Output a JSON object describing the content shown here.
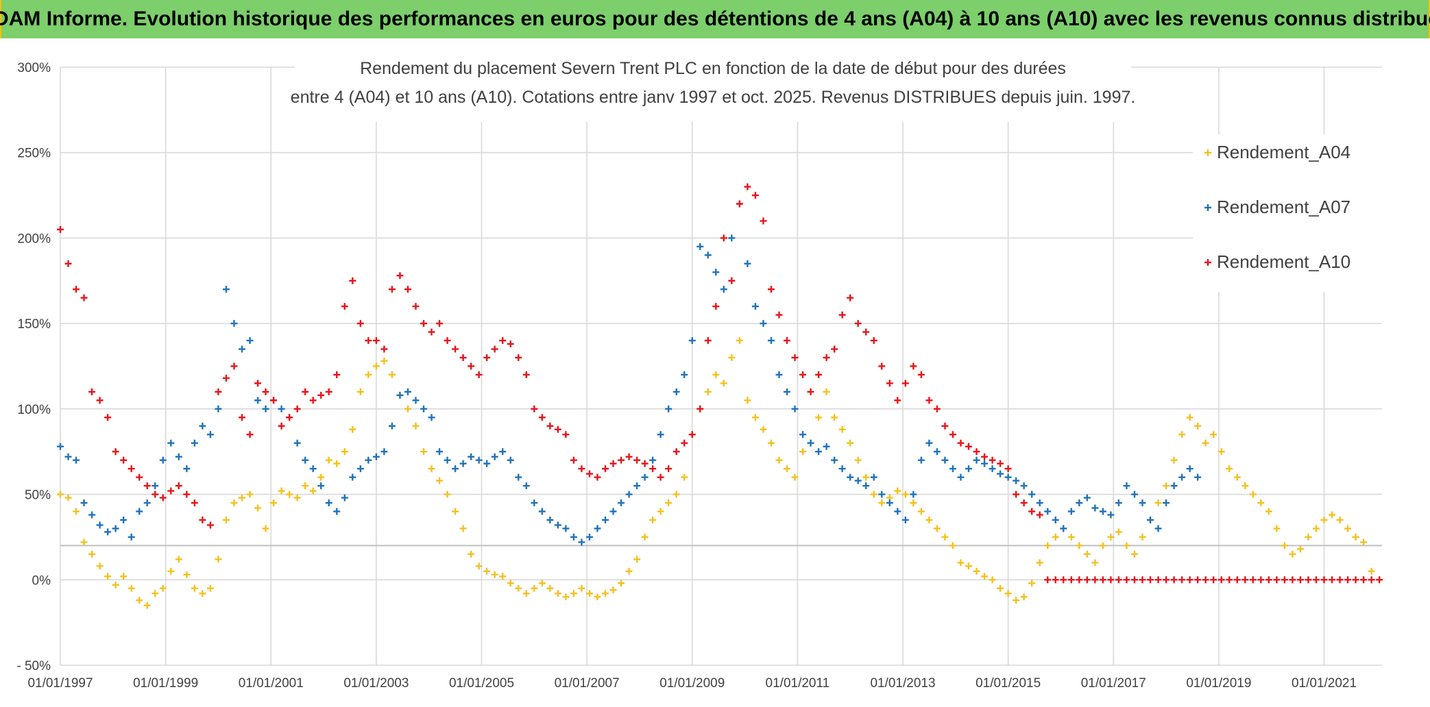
{
  "header": {
    "title": "ADAM Informe. Evolution historique des performances en euros pour des détentions de 4 ans (A04) à 10 ans (A10) avec les revenus connus distribués"
  },
  "colors": {
    "header_bg": "#7ccf6b",
    "frame_border": "#f2c200",
    "A04": "#f5c01e",
    "A07": "#1f72bb",
    "A10": "#e8141a",
    "grid": "#d9d9d9"
  },
  "chart_data": {
    "type": "scatter",
    "title_lines": [
      "Rendement du placement Severn Trent PLC en fonction de la date de début pour des durées",
      "entre 4 (A04) et 10 ans (A10). Cotations entre janv 1997 et oct. 2025. Revenus DISTRIBUES depuis juin. 1997."
    ],
    "xlim": [
      1997.0,
      2022.1
    ],
    "ylim": [
      -50,
      300
    ],
    "x_ticks": [
      1997,
      1999,
      2001,
      2003,
      2005,
      2007,
      2009,
      2011,
      2013,
      2015,
      2017,
      2019,
      2021
    ],
    "x_tick_labels": [
      "01/01/1997",
      "01/01/1999",
      "01/01/2001",
      "01/01/2003",
      "01/01/2005",
      "01/01/2007",
      "01/01/2009",
      "01/01/2011",
      "01/01/2013",
      "01/01/2015",
      "01/01/2017",
      "01/01/2019",
      "01/01/2021"
    ],
    "y_ticks": [
      -50,
      0,
      50,
      100,
      150,
      200,
      250,
      300
    ],
    "y_tick_labels": [
      "- 50%",
      "0%",
      "50%",
      "100%",
      "150%",
      "200%",
      "250%",
      "300%"
    ],
    "legend": {
      "placement": "right",
      "entries": [
        "Rendement_A04",
        "Rendement_A07",
        "Rendement_A10"
      ]
    },
    "marker": "+",
    "series": [
      {
        "name": "Rendement_A04",
        "color": "#f5c01e",
        "x": [
          1997.0,
          1997.15,
          1997.3,
          1997.45,
          1997.6,
          1997.75,
          1997.9,
          1998.05,
          1998.2,
          1998.35,
          1998.5,
          1998.65,
          1998.8,
          1998.95,
          1999.1,
          1999.25,
          1999.4,
          1999.55,
          1999.7,
          1999.85,
          2000.0,
          2000.15,
          2000.3,
          2000.45,
          2000.6,
          2000.75,
          2000.9,
          2001.05,
          2001.2,
          2001.35,
          2001.5,
          2001.65,
          2001.8,
          2001.95,
          2002.1,
          2002.25,
          2002.4,
          2002.55,
          2002.7,
          2002.85,
          2003.0,
          2003.15,
          2003.3,
          2003.45,
          2003.6,
          2003.75,
          2003.9,
          2004.05,
          2004.2,
          2004.35,
          2004.5,
          2004.65,
          2004.8,
          2004.95,
          2005.1,
          2005.25,
          2005.4,
          2005.55,
          2005.7,
          2005.85,
          2006.0,
          2006.15,
          2006.3,
          2006.45,
          2006.6,
          2006.75,
          2006.9,
          2007.05,
          2007.2,
          2007.35,
          2007.5,
          2007.65,
          2007.8,
          2007.95,
          2008.1,
          2008.25,
          2008.4,
          2008.55,
          2008.7,
          2008.85,
          2009.0,
          2009.15,
          2009.3,
          2009.45,
          2009.6,
          2009.75,
          2009.9,
          2010.05,
          2010.2,
          2010.35,
          2010.5,
          2010.65,
          2010.8,
          2010.95,
          2011.1,
          2011.25,
          2011.4,
          2011.55,
          2011.7,
          2011.85,
          2012.0,
          2012.15,
          2012.3,
          2012.45,
          2012.6,
          2012.75,
          2012.9,
          2013.05,
          2013.2,
          2013.35,
          2013.5,
          2013.65,
          2013.8,
          2013.95,
          2014.1,
          2014.25,
          2014.4,
          2014.55,
          2014.7,
          2014.85,
          2015.0,
          2015.15,
          2015.3,
          2015.45,
          2015.6,
          2015.75,
          2015.9,
          2016.05,
          2016.2,
          2016.35,
          2016.5,
          2016.65,
          2016.8,
          2016.95,
          2017.1,
          2017.25,
          2017.4,
          2017.55,
          2017.7,
          2017.85,
          2018.0,
          2018.15,
          2018.3,
          2018.45,
          2018.6,
          2018.75,
          2018.9,
          2019.05,
          2019.2,
          2019.35,
          2019.5,
          2019.65,
          2019.8,
          2019.95,
          2020.1,
          2020.25,
          2020.4,
          2020.55,
          2020.7,
          2020.85,
          2021.0,
          2021.15,
          2021.3,
          2021.45,
          2021.6,
          2021.75,
          2021.9,
          2022.05
        ],
        "y": [
          50,
          48,
          40,
          22,
          15,
          8,
          2,
          -3,
          2,
          -5,
          -12,
          -15,
          -8,
          -5,
          5,
          12,
          3,
          -5,
          -8,
          -5,
          12,
          35,
          45,
          48,
          50,
          42,
          30,
          45,
          52,
          50,
          48,
          55,
          52,
          60,
          70,
          68,
          75,
          88,
          110,
          120,
          125,
          128,
          120,
          108,
          100,
          90,
          75,
          65,
          58,
          50,
          40,
          30,
          15,
          8,
          5,
          3,
          2,
          -2,
          -5,
          -8,
          -5,
          -2,
          -5,
          -8,
          -10,
          -8,
          -5,
          -8,
          -10,
          -8,
          -6,
          -2,
          5,
          12,
          25,
          35,
          40,
          45,
          50,
          60,
          85,
          100,
          110,
          120,
          115,
          130,
          140,
          105,
          95,
          88,
          80,
          70,
          65,
          60,
          75,
          80,
          95,
          110,
          95,
          88,
          80,
          70,
          60,
          50,
          45,
          48,
          52,
          50,
          45,
          40,
          35,
          30,
          25,
          20,
          10,
          8,
          5,
          2,
          0,
          -5,
          -8,
          -12,
          -10,
          -2,
          10,
          20,
          25,
          30,
          25,
          20,
          15,
          10,
          20,
          25,
          28,
          20,
          15,
          25,
          35,
          45,
          55,
          70,
          85,
          95,
          90,
          80,
          85,
          75,
          65,
          60,
          55,
          50,
          45,
          40,
          30,
          20,
          15,
          18,
          25,
          30,
          35,
          38,
          35,
          30,
          25,
          22,
          5,
          0
        ]
      },
      {
        "name": "Rendement_A07",
        "color": "#1f72bb",
        "x": [
          1997.0,
          1997.15,
          1997.3,
          1997.45,
          1997.6,
          1997.75,
          1997.9,
          1998.05,
          1998.2,
          1998.35,
          1998.5,
          1998.65,
          1998.8,
          1998.95,
          1999.1,
          1999.25,
          1999.4,
          1999.55,
          1999.7,
          1999.85,
          2000.0,
          2000.15,
          2000.3,
          2000.45,
          2000.6,
          2000.75,
          2000.9,
          2001.05,
          2001.2,
          2001.35,
          2001.5,
          2001.65,
          2001.8,
          2001.95,
          2002.1,
          2002.25,
          2002.4,
          2002.55,
          2002.7,
          2002.85,
          2003.0,
          2003.15,
          2003.3,
          2003.45,
          2003.6,
          2003.75,
          2003.9,
          2004.05,
          2004.2,
          2004.35,
          2004.5,
          2004.65,
          2004.8,
          2004.95,
          2005.1,
          2005.25,
          2005.4,
          2005.55,
          2005.7,
          2005.85,
          2006.0,
          2006.15,
          2006.3,
          2006.45,
          2006.6,
          2006.75,
          2006.9,
          2007.05,
          2007.2,
          2007.35,
          2007.5,
          2007.65,
          2007.8,
          2007.95,
          2008.1,
          2008.25,
          2008.4,
          2008.55,
          2008.7,
          2008.85,
          2009.0,
          2009.15,
          2009.3,
          2009.45,
          2009.6,
          2009.75,
          2009.9,
          2010.05,
          2010.2,
          2010.35,
          2010.5,
          2010.65,
          2010.8,
          2010.95,
          2011.1,
          2011.25,
          2011.4,
          2011.55,
          2011.7,
          2011.85,
          2012.0,
          2012.15,
          2012.3,
          2012.45,
          2012.6,
          2012.75,
          2012.9,
          2013.05,
          2013.2,
          2013.35,
          2013.5,
          2013.65,
          2013.8,
          2013.95,
          2014.1,
          2014.25,
          2014.4,
          2014.55,
          2014.7,
          2014.85,
          2015.0,
          2015.15,
          2015.3,
          2015.45,
          2015.6,
          2015.75,
          2015.9,
          2016.05,
          2016.2,
          2016.35,
          2016.5,
          2016.65,
          2016.8,
          2016.95,
          2017.1,
          2017.25,
          2017.4,
          2017.55,
          2017.7,
          2017.85,
          2018.0,
          2018.15,
          2018.3,
          2018.45,
          2018.6
        ],
        "y": [
          78,
          72,
          70,
          45,
          38,
          32,
          28,
          30,
          35,
          25,
          40,
          45,
          55,
          70,
          80,
          72,
          65,
          80,
          90,
          85,
          100,
          170,
          150,
          135,
          140,
          105,
          100,
          105,
          100,
          95,
          80,
          70,
          65,
          55,
          45,
          40,
          48,
          60,
          65,
          70,
          72,
          75,
          90,
          108,
          110,
          105,
          100,
          95,
          75,
          70,
          65,
          68,
          72,
          70,
          68,
          72,
          75,
          70,
          60,
          55,
          45,
          40,
          35,
          32,
          30,
          25,
          22,
          25,
          30,
          35,
          40,
          45,
          50,
          55,
          60,
          70,
          85,
          100,
          110,
          120,
          140,
          195,
          190,
          180,
          170,
          200,
          220,
          185,
          160,
          150,
          140,
          120,
          110,
          100,
          85,
          80,
          75,
          78,
          70,
          65,
          60,
          58,
          55,
          60,
          50,
          45,
          40,
          35,
          50,
          70,
          80,
          75,
          70,
          65,
          60,
          65,
          70,
          68,
          65,
          62,
          60,
          58,
          55,
          50,
          45,
          40,
          35,
          30,
          40,
          45,
          48,
          42,
          40,
          38,
          45,
          55,
          50,
          45,
          35,
          30,
          45,
          55,
          60,
          65,
          60
        ]
      },
      {
        "name": "Rendement_A10",
        "color": "#e8141a",
        "x": [
          1997.0,
          1997.15,
          1997.3,
          1997.45,
          1997.6,
          1997.75,
          1997.9,
          1998.05,
          1998.2,
          1998.35,
          1998.5,
          1998.65,
          1998.8,
          1998.95,
          1999.1,
          1999.25,
          1999.4,
          1999.55,
          1999.7,
          1999.85,
          2000.0,
          2000.15,
          2000.3,
          2000.45,
          2000.6,
          2000.75,
          2000.9,
          2001.05,
          2001.2,
          2001.35,
          2001.5,
          2001.65,
          2001.8,
          2001.95,
          2002.1,
          2002.25,
          2002.4,
          2002.55,
          2002.7,
          2002.85,
          2003.0,
          2003.15,
          2003.3,
          2003.45,
          2003.6,
          2003.75,
          2003.9,
          2004.05,
          2004.2,
          2004.35,
          2004.5,
          2004.65,
          2004.8,
          2004.95,
          2005.1,
          2005.25,
          2005.4,
          2005.55,
          2005.7,
          2005.85,
          2006.0,
          2006.15,
          2006.3,
          2006.45,
          2006.6,
          2006.75,
          2006.9,
          2007.05,
          2007.2,
          2007.35,
          2007.5,
          2007.65,
          2007.8,
          2007.95,
          2008.1,
          2008.25,
          2008.4,
          2008.55,
          2008.7,
          2008.85,
          2009.0,
          2009.15,
          2009.3,
          2009.45,
          2009.6,
          2009.75,
          2009.9,
          2010.05,
          2010.2,
          2010.35,
          2010.5,
          2010.65,
          2010.8,
          2010.95,
          2011.1,
          2011.25,
          2011.4,
          2011.55,
          2011.7,
          2011.85,
          2012.0,
          2012.15,
          2012.3,
          2012.45,
          2012.6,
          2012.75,
          2012.9,
          2013.05,
          2013.2,
          2013.35,
          2013.5,
          2013.65,
          2013.8,
          2013.95,
          2014.1,
          2014.25,
          2014.4,
          2014.55,
          2014.7,
          2014.85,
          2015.0,
          2015.15,
          2015.3,
          2015.45,
          2015.6,
          2015.75,
          2015.9,
          2016.05,
          2016.2,
          2016.35,
          2016.5,
          2016.65,
          2016.8,
          2016.95,
          2017.1,
          2017.25,
          2017.4,
          2017.55,
          2017.7,
          2017.85,
          2018.0,
          2018.15,
          2018.3,
          2018.45,
          2018.6,
          2018.75,
          2018.9,
          2019.05,
          2019.2,
          2019.35,
          2019.5,
          2019.65,
          2019.8,
          2019.95,
          2020.1,
          2020.25,
          2020.4,
          2020.55,
          2020.7,
          2020.85,
          2021.0,
          2021.15,
          2021.3,
          2021.45,
          2021.6,
          2021.75,
          2021.9,
          2022.05
        ],
        "y": [
          205,
          185,
          170,
          165,
          110,
          105,
          95,
          75,
          70,
          65,
          60,
          55,
          50,
          48,
          52,
          55,
          50,
          45,
          35,
          32,
          110,
          118,
          125,
          95,
          85,
          115,
          110,
          105,
          90,
          95,
          100,
          110,
          105,
          108,
          110,
          120,
          160,
          175,
          150,
          140,
          140,
          135,
          170,
          178,
          170,
          160,
          150,
          145,
          150,
          140,
          135,
          130,
          125,
          120,
          130,
          135,
          140,
          138,
          130,
          120,
          100,
          95,
          90,
          88,
          85,
          70,
          65,
          62,
          60,
          65,
          68,
          70,
          72,
          70,
          68,
          65,
          60,
          65,
          75,
          80,
          85,
          100,
          140,
          160,
          200,
          175,
          220,
          230,
          225,
          210,
          170,
          155,
          140,
          130,
          120,
          110,
          120,
          130,
          135,
          155,
          165,
          150,
          145,
          140,
          125,
          115,
          105,
          115,
          125,
          120,
          105,
          100,
          90,
          85,
          80,
          78,
          75,
          72,
          70,
          68,
          65,
          50,
          45,
          40,
          38,
          0,
          0,
          0,
          0,
          0,
          0,
          0,
          0,
          0,
          0,
          0,
          0,
          0,
          0,
          0,
          0,
          0,
          0,
          0,
          0,
          0,
          0,
          0,
          0,
          0,
          0,
          0,
          0,
          0,
          0,
          0,
          0,
          0,
          0,
          0,
          0,
          0,
          0,
          0,
          0,
          0,
          0,
          0
        ]
      }
    ]
  }
}
